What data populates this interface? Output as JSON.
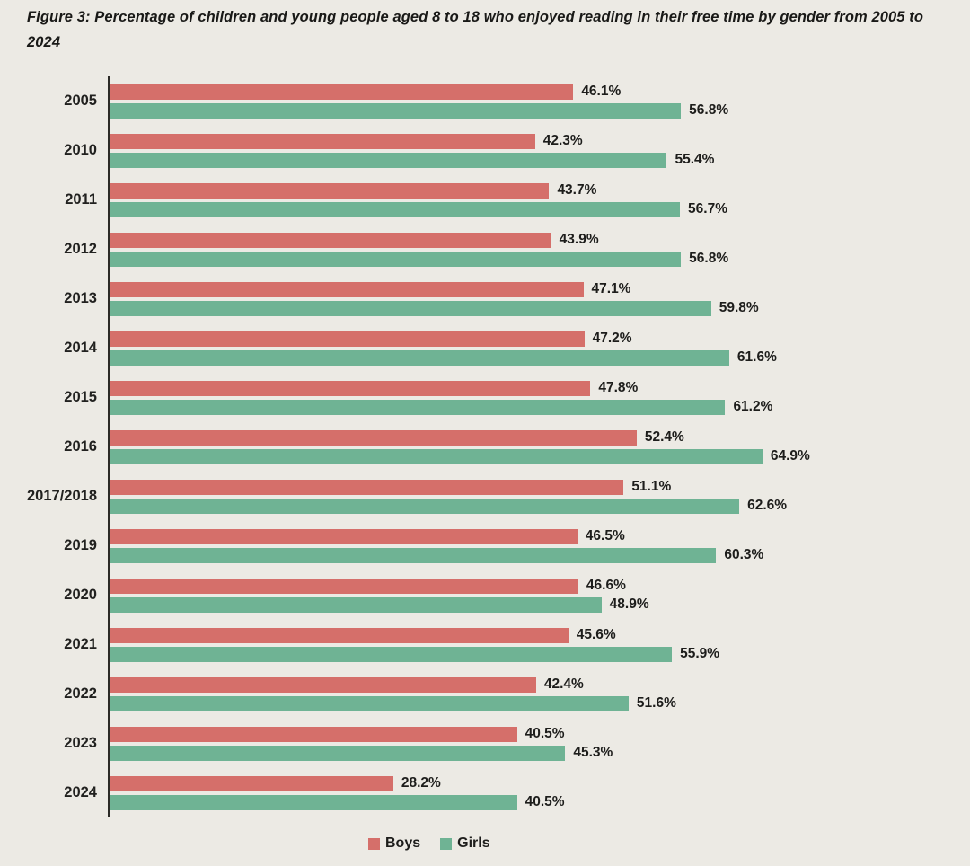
{
  "title": "Figure 3: Percentage of children and young people aged 8 to 18 who enjoyed reading in their free time by gender from 2005 to 2024",
  "colors": {
    "boys": "#D56F6A",
    "girls": "#6FB394",
    "background": "#ECEAE4",
    "axis": "#2B2A26",
    "text": "#1D1D1B"
  },
  "legend": {
    "items": [
      {
        "label": "Boys",
        "color": "#D56F6A"
      },
      {
        "label": "Girls",
        "color": "#6FB394"
      }
    ]
  },
  "chart_data": {
    "type": "bar",
    "orientation": "horizontal",
    "title": "Figure 3: Percentage of children and young people aged 8 to 18 who enjoyed reading in their free time by gender from 2005 to 2024",
    "categories": [
      "2005",
      "2010",
      "2011",
      "2012",
      "2013",
      "2014",
      "2015",
      "2016",
      "2017/2018",
      "2019",
      "2020",
      "2021",
      "2022",
      "2023",
      "2024"
    ],
    "series": [
      {
        "name": "Boys",
        "color": "#D56F6A",
        "values": [
          46.1,
          42.3,
          43.7,
          43.9,
          47.1,
          47.2,
          47.8,
          52.4,
          51.1,
          46.5,
          46.6,
          45.6,
          42.4,
          40.5,
          28.2
        ]
      },
      {
        "name": "Girls",
        "color": "#6FB394",
        "values": [
          56.8,
          55.4,
          56.7,
          56.8,
          59.8,
          61.6,
          61.2,
          64.9,
          62.6,
          60.3,
          48.9,
          55.9,
          51.6,
          45.3,
          40.5
        ]
      }
    ],
    "value_suffix": "%",
    "xlim": [
      0,
      85
    ],
    "grid": false,
    "legend_position": "bottom-center"
  }
}
